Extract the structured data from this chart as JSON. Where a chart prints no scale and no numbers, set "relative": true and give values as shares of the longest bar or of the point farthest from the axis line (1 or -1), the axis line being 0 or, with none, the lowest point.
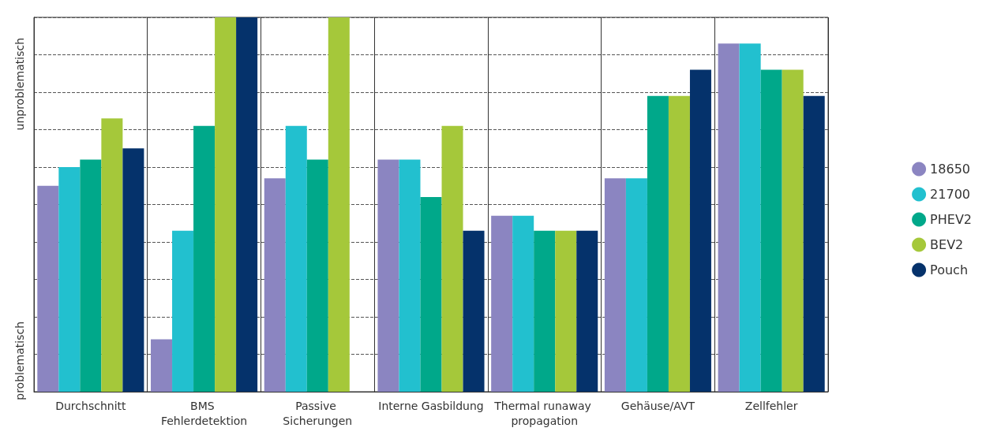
{
  "chart_data": {
    "type": "bar",
    "relative": true,
    "categories": [
      "Durchschnitt",
      "BMS Fehlerdetektion",
      "Passive Sicherungen",
      "Interne Gasbildung",
      "Thermal runaway propagation",
      "Gehäuse/AVT",
      "Zellfehler"
    ],
    "series": [
      {
        "name": "18650",
        "color": "#8b85c1",
        "values": [
          0.55,
          0.14,
          0.57,
          0.62,
          0.47,
          0.57,
          0.93
        ]
      },
      {
        "name": "21700",
        "color": "#22c0cf",
        "values": [
          0.6,
          0.43,
          0.71,
          0.62,
          0.47,
          0.57,
          0.93
        ]
      },
      {
        "name": "PHEV2",
        "color": "#00a88a",
        "values": [
          0.62,
          0.71,
          0.62,
          0.52,
          0.43,
          0.79,
          0.86
        ]
      },
      {
        "name": "BEV2",
        "color": "#a5c83a",
        "values": [
          0.73,
          1,
          1,
          0.71,
          0.43,
          0.79,
          0.86
        ]
      },
      {
        "name": "Pouch",
        "color": "#05326b",
        "values": [
          0.65,
          1,
          null,
          0.43,
          0.43,
          0.86,
          0.79
        ]
      }
    ],
    "annotations": [
      "problematisch",
      "unproblematisch"
    ],
    "grid": true,
    "legend": "right"
  }
}
